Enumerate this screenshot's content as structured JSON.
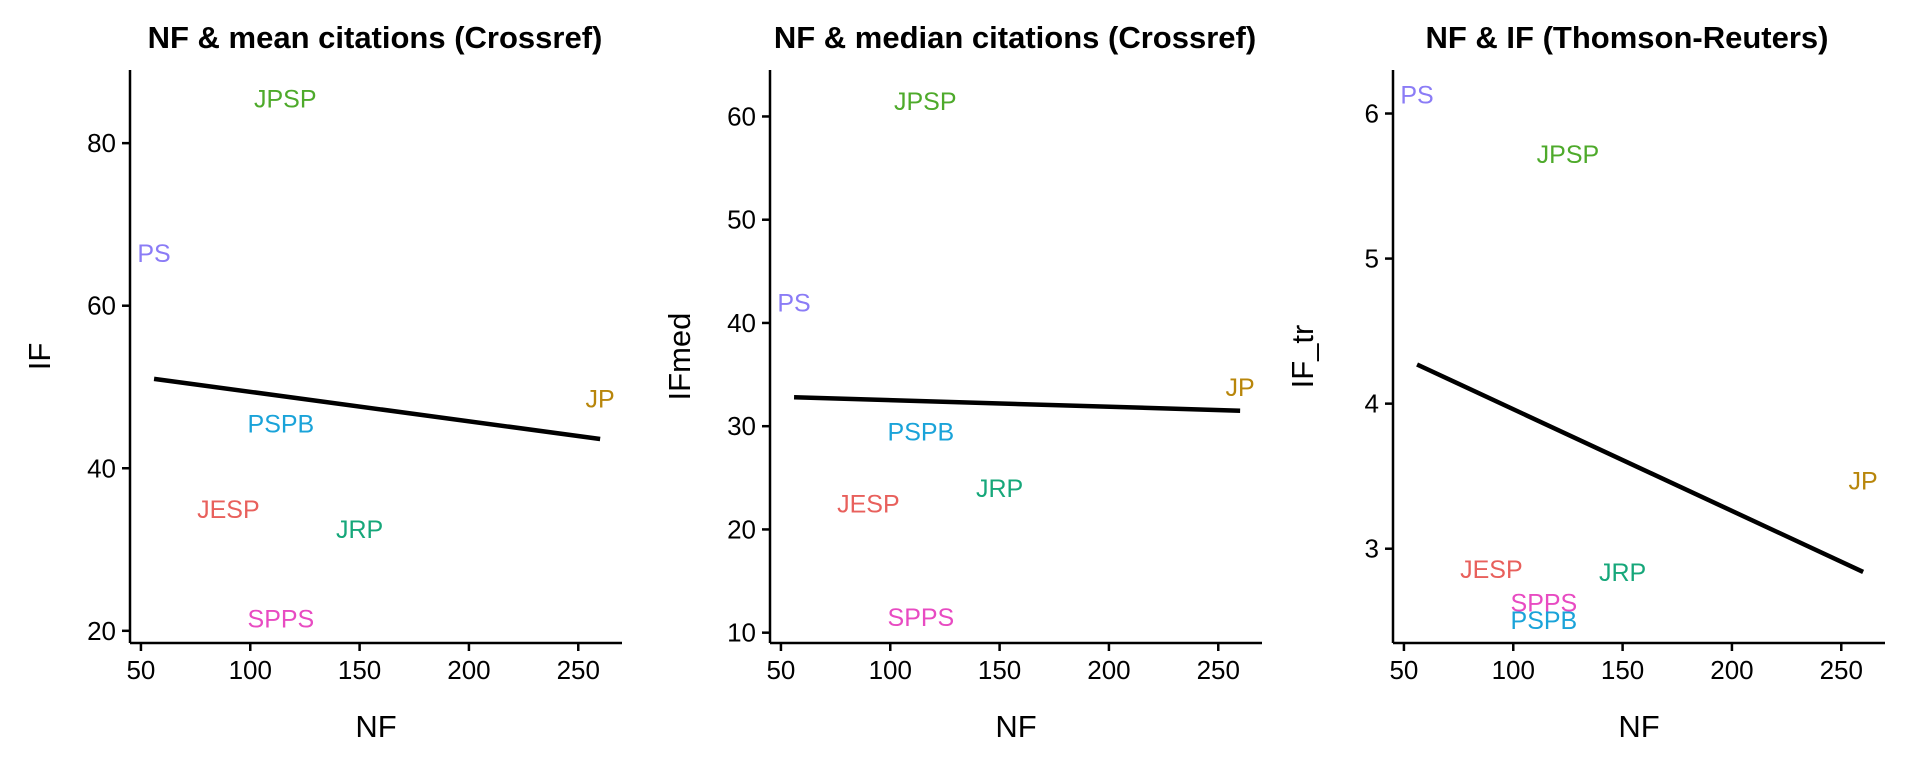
{
  "chart_data": [
    {
      "type": "scatter",
      "title": "NF & mean citations (Crossref)",
      "xlabel": "NF",
      "ylabel": "IF",
      "xlim": [
        45,
        270
      ],
      "ylim": [
        18.5,
        89
      ],
      "xticks": [
        50,
        100,
        150,
        200,
        250
      ],
      "yticks": [
        20,
        40,
        60,
        80
      ],
      "points": [
        {
          "label": "JPSP",
          "x": 116,
          "y": 85.5,
          "color": "#4eaa2b"
        },
        {
          "label": "PS",
          "x": 56,
          "y": 66.5,
          "color": "#8b7cf6"
        },
        {
          "label": "JP",
          "x": 260,
          "y": 48.6,
          "color": "#b8860b"
        },
        {
          "label": "PSPB",
          "x": 114,
          "y": 45.5,
          "color": "#1aa3d9"
        },
        {
          "label": "JESP",
          "x": 90,
          "y": 35.0,
          "color": "#e8605c"
        },
        {
          "label": "JRP",
          "x": 150,
          "y": 32.5,
          "color": "#16a77a"
        },
        {
          "label": "SPPS",
          "x": 114,
          "y": 21.5,
          "color": "#e84bc2"
        }
      ],
      "fit": {
        "x": [
          56,
          260
        ],
        "y": [
          51.0,
          43.6
        ]
      }
    },
    {
      "type": "scatter",
      "title": "NF & median citations (Crossref)",
      "xlabel": "NF",
      "ylabel": "IFmed",
      "xlim": [
        45,
        270
      ],
      "ylim": [
        9,
        64.5
      ],
      "xticks": [
        50,
        100,
        150,
        200,
        250
      ],
      "yticks": [
        10,
        20,
        30,
        40,
        50,
        60
      ],
      "points": [
        {
          "label": "JPSP",
          "x": 116,
          "y": 61.5,
          "color": "#4eaa2b"
        },
        {
          "label": "PS",
          "x": 56,
          "y": 42.0,
          "color": "#8b7cf6"
        },
        {
          "label": "JP",
          "x": 260,
          "y": 33.8,
          "color": "#b8860b"
        },
        {
          "label": "PSPB",
          "x": 114,
          "y": 29.5,
          "color": "#1aa3d9"
        },
        {
          "label": "JRP",
          "x": 150,
          "y": 24.0,
          "color": "#16a77a"
        },
        {
          "label": "JESP",
          "x": 90,
          "y": 22.5,
          "color": "#e8605c"
        },
        {
          "label": "SPPS",
          "x": 114,
          "y": 11.5,
          "color": "#e84bc2"
        }
      ],
      "fit": {
        "x": [
          56,
          260
        ],
        "y": [
          32.8,
          31.5
        ]
      }
    },
    {
      "type": "scatter",
      "title": "NF & IF (Thomson-Reuters)",
      "xlabel": "NF",
      "ylabel": "IF_tr",
      "xlim": [
        45,
        270
      ],
      "ylim": [
        2.35,
        6.3
      ],
      "xticks": [
        50,
        100,
        150,
        200,
        250
      ],
      "yticks": [
        3,
        4,
        5,
        6
      ],
      "points": [
        {
          "label": "PS",
          "x": 56,
          "y": 6.13,
          "color": "#8b7cf6"
        },
        {
          "label": "JPSP",
          "x": 125,
          "y": 5.72,
          "color": "#4eaa2b"
        },
        {
          "label": "JP",
          "x": 260,
          "y": 3.47,
          "color": "#b8860b"
        },
        {
          "label": "JESP",
          "x": 90,
          "y": 2.86,
          "color": "#e8605c"
        },
        {
          "label": "JRP",
          "x": 150,
          "y": 2.84,
          "color": "#16a77a"
        },
        {
          "label": "SPPS",
          "x": 114,
          "y": 2.63,
          "color": "#e84bc2"
        },
        {
          "label": "PSPB",
          "x": 114,
          "y": 2.51,
          "color": "#1aa3d9"
        }
      ],
      "fit": {
        "x": [
          56,
          260
        ],
        "y": [
          4.27,
          2.84
        ]
      }
    }
  ]
}
